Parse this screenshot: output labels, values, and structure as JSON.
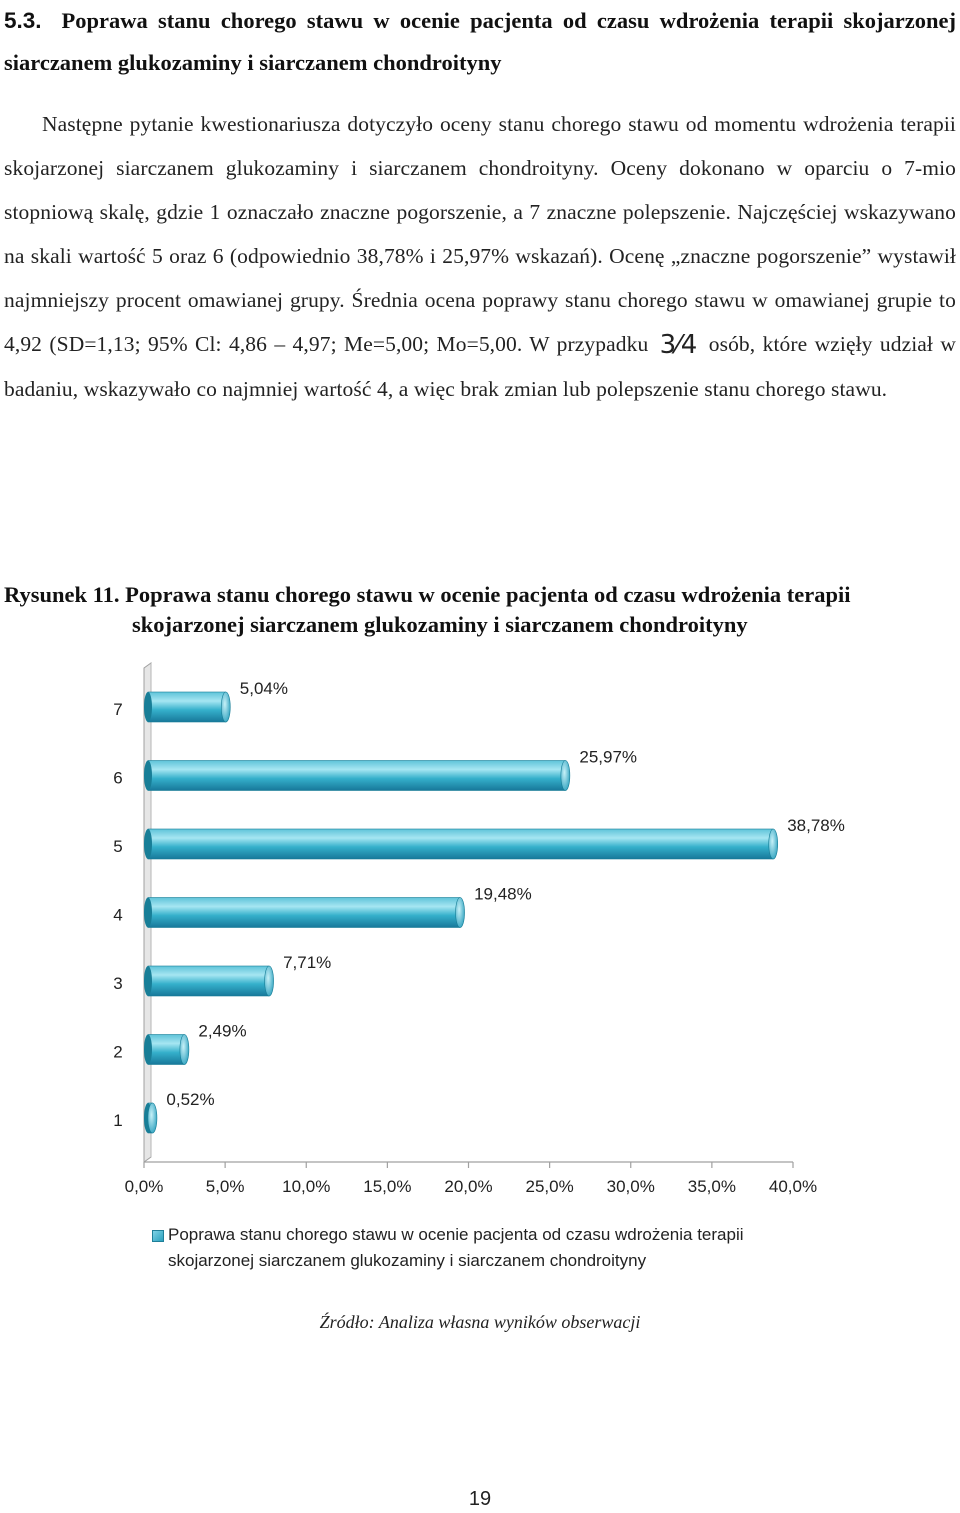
{
  "heading": {
    "number": "5.3.",
    "title": "Poprawa stanu chorego stawu w ocenie pacjenta od czasu wdrożenia terapii skojarzonej siarczanem glukozaminy i siarczanem chondroityny"
  },
  "paragraph": {
    "before_fraction": "Następne pytanie kwestionariusza dotyczyło oceny stanu chorego stawu od momentu wdrożenia terapii skojarzonej siarczanem glukozaminy i siarczanem chondroityny. Oceny dokonano w oparciu o 7-mio stopniową skalę, gdzie 1 oznaczało znaczne pogorszenie, a 7 znaczne polepszenie. Najczęściej wskazywano na skali wartość 5 oraz 6 (odpowiednio 38,78% i 25,97% wskazań). Ocenę „znaczne pogorszenie” wystawił najmniejszy procent omawianej grupy. Średnia ocena poprawy stanu chorego stawu w omawianej grupie to 4,92 (SD=1,13; 95% Cl: 4,86 – 4,97; Me=5,00; Mo=5,00. W przypadku",
    "fraction": "3⁄4",
    "after_fraction": "osób, które wzięły udział w badaniu, wskazywało co najmniej wartość 4, a więc brak zmian lub polepszenie stanu chorego stawu."
  },
  "caption": {
    "label": "Rysunek 11.",
    "line1": "Poprawa stanu chorego stawu w ocenie pacjenta od czasu wdrożenia terapii",
    "line2": "skojarzonej siarczanem glukozaminy i siarczanem chondroityny"
  },
  "chart_data": {
    "type": "bar",
    "orientation": "horizontal",
    "style": "3d-cylinder",
    "categories": [
      "7",
      "6",
      "5",
      "4",
      "3",
      "2",
      "1"
    ],
    "values": [
      5.04,
      25.97,
      38.78,
      19.48,
      7.71,
      2.49,
      0.52
    ],
    "data_labels": [
      "5,04%",
      "25,97%",
      "38,78%",
      "19,48%",
      "7,71%",
      "2,49%",
      "0,52%"
    ],
    "xlim": [
      0,
      40
    ],
    "x_ticks": [
      "0,0%",
      "5,0%",
      "10,0%",
      "15,0%",
      "20,0%",
      "25,0%",
      "30,0%",
      "35,0%",
      "40,0%"
    ],
    "legend": {
      "position": "bottom",
      "line1": "Poprawa stanu chorego stawu w ocenie pacjenta od czasu wdrożenia terapii",
      "line2": "skojarzonej siarczanem glukozaminy i siarczanem chondroityny"
    },
    "colors": {
      "bar": "#2aa6c2",
      "bar_light": "#8fdcec",
      "bar_dark": "#187e97",
      "axis": "#a0a0a0",
      "wall": "#e6e6e6"
    }
  },
  "source": "Źródło: Analiza własna wyników obserwacji",
  "page_number": "19"
}
